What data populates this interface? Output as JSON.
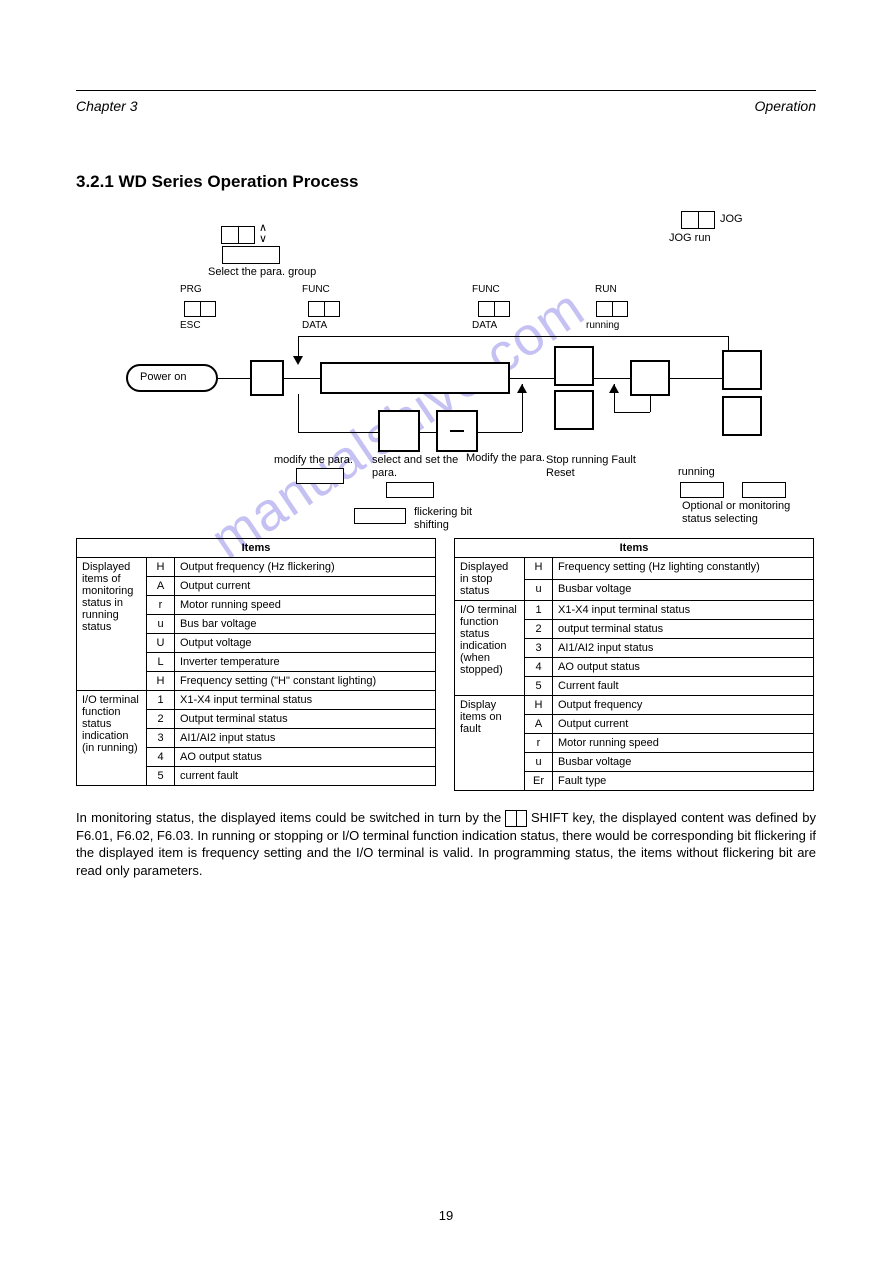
{
  "header": {
    "left": "Chapter 3",
    "right": "Operation"
  },
  "section_heading": "3.2.1  WD Series Operation Process",
  "diagram": {
    "power_on_label": "Power on",
    "keys": {
      "prg_esc": "PRG/ESC",
      "func_data": "FUNC/DATA",
      "stop_reset": "STOP/RESET",
      "shift": "SHIFT",
      "run": "RUN",
      "jog": "JOG",
      "up": "∧",
      "down": "∨"
    },
    "captions": {
      "select_group": "Select the para.\ngroup",
      "modify_para_left": "modify the para.",
      "select_set_para": "select and\nset the para.",
      "modify_para_right": "Modify the\npara.",
      "jog_run": "JOG run",
      "flickering": "flickering bit\nshifting",
      "stop_running": "Stop running\nFault Reset",
      "running": "running",
      "optional_monitor": "Optional or\nmonitoring status\nselecting"
    }
  },
  "tables": {
    "left": {
      "header": "Items",
      "groups": [
        {
          "name": "Displayed items of monitoring status in running status",
          "rows": [
            [
              "H",
              "Output frequency (Hz flickering)"
            ],
            [
              "A",
              "Output current"
            ],
            [
              "r",
              "Motor running speed"
            ],
            [
              "u",
              "Bus bar voltage"
            ],
            [
              "U",
              "Output voltage"
            ],
            [
              "L",
              "Inverter temperature"
            ],
            [
              "H",
              "Frequency setting (\"H\" constant lighting)"
            ]
          ]
        },
        {
          "name": "I/O terminal function status indication (in running)",
          "rows": [
            [
              "1",
              "X1-X4 input terminal status"
            ],
            [
              "2",
              "Output terminal status"
            ],
            [
              "3",
              "AI1/AI2 input status"
            ],
            [
              "4",
              "AO output status"
            ],
            [
              "5",
              "current fault"
            ]
          ]
        }
      ]
    },
    "right": {
      "header": "Items",
      "groups": [
        {
          "name": "Displayed in stop status",
          "rows": [
            [
              "H",
              "Frequency setting (Hz lighting constantly)"
            ],
            [
              "u",
              "Busbar voltage"
            ]
          ]
        },
        {
          "name": "I/O terminal function status indication (when stopped)",
          "rows": [
            [
              "1",
              "X1-X4 input terminal status"
            ],
            [
              "2",
              "output terminal status"
            ],
            [
              "3",
              "AI1/AI2 input status"
            ],
            [
              "4",
              "AO output status"
            ],
            [
              "5",
              "Current fault"
            ]
          ]
        },
        {
          "name": "Display items on fault",
          "rows": [
            [
              "H",
              "Output frequency"
            ],
            [
              "A",
              "Output current"
            ],
            [
              "r",
              "Motor running speed"
            ],
            [
              "u",
              "Busbar voltage"
            ],
            [
              "Er",
              "Fault type"
            ]
          ]
        }
      ]
    }
  },
  "paragraph": {
    "text_before_key": "In monitoring status, the displayed items could be switched in turn by the ",
    "key_label": "SHIFT",
    "text_after_key": " key, the displayed content was defined by F6.01, F6.02, F6.03. In running or stopping or I/O terminal function indication status, there would be corresponding bit flickering if the displayed item is frequency setting and the I/O terminal is valid. In programming status, the items without flickering bit are read only parameters."
  },
  "page_number": "19",
  "watermark": "manualshive.com"
}
